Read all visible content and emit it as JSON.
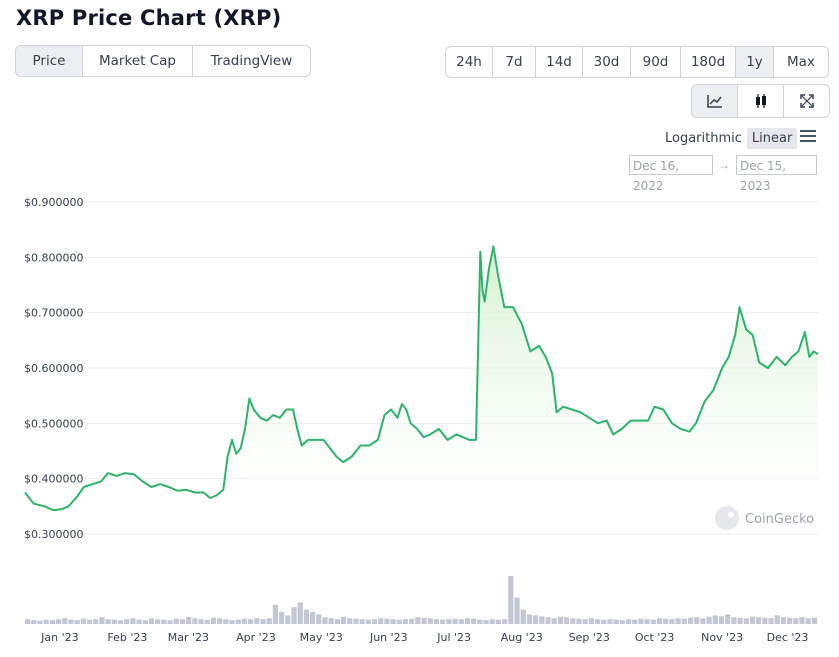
{
  "page_title": "XRP Price Chart (XRP)",
  "metric_tabs": [
    {
      "label": "Price",
      "active": true
    },
    {
      "label": "Market Cap",
      "active": false
    },
    {
      "label": "TradingView",
      "active": false
    }
  ],
  "range_tabs": [
    {
      "label": "24h",
      "active": false
    },
    {
      "label": "7d",
      "active": false
    },
    {
      "label": "14d",
      "active": false
    },
    {
      "label": "30d",
      "active": false
    },
    {
      "label": "90d",
      "active": false
    },
    {
      "label": "180d",
      "active": false
    },
    {
      "label": "1y",
      "active": true
    },
    {
      "label": "Max",
      "active": false
    }
  ],
  "view_buttons": [
    {
      "icon": "line-chart-icon",
      "active": true
    },
    {
      "icon": "candlestick-icon",
      "active": false
    },
    {
      "icon": "expand-icon",
      "active": false
    }
  ],
  "scale_options": {
    "logarithmic": "Logarithmic",
    "linear": "Linear",
    "active": "linear"
  },
  "date_range": {
    "from": "Dec 16, 2022",
    "arrow": "→",
    "to": "Dec 15, 2023"
  },
  "watermark": "CoinGecko",
  "colors": {
    "line": "#2fb36b",
    "fill_top": "#c9eec4",
    "volume": "#c3c7d4",
    "grid": "#eeeeee"
  },
  "chart_data": {
    "type": "area",
    "title": "XRP Price Chart (XRP)",
    "y_tick_labels": [
      "$0.900000",
      "$0.800000",
      "$0.700000",
      "$0.600000",
      "$0.500000",
      "$0.400000",
      "$0.300000"
    ],
    "y_ticks": [
      0.9,
      0.8,
      0.7,
      0.6,
      0.5,
      0.4,
      0.3
    ],
    "ylim": [
      0.3,
      0.9
    ],
    "x_tick_labels": [
      "Jan '23",
      "Feb '23",
      "Mar '23",
      "Apr '23",
      "May '23",
      "Jun '23",
      "Jul '23",
      "Aug '23",
      "Sep '23",
      "Oct '23",
      "Nov '23",
      "Dec '23"
    ],
    "x_ticks": [
      "2023-01-01",
      "2023-02-01",
      "2023-03-01",
      "2023-04-01",
      "2023-05-01",
      "2023-06-01",
      "2023-07-01",
      "2023-08-01",
      "2023-09-01",
      "2023-10-01",
      "2023-11-01",
      "2023-12-01"
    ],
    "xlim": [
      "2022-12-16",
      "2023-12-15"
    ],
    "grid": true,
    "legend": "none",
    "series": [
      {
        "values": [
          [
            "2022-12-16",
            0.375
          ],
          [
            "2022-12-20",
            0.355
          ],
          [
            "2022-12-25",
            0.35
          ],
          [
            "2022-12-29",
            0.343
          ],
          [
            "2023-01-02",
            0.345
          ],
          [
            "2023-01-05",
            0.35
          ],
          [
            "2023-01-09",
            0.368
          ],
          [
            "2023-01-12",
            0.385
          ],
          [
            "2023-01-16",
            0.39
          ],
          [
            "2023-01-20",
            0.395
          ],
          [
            "2023-01-23",
            0.41
          ],
          [
            "2023-01-27",
            0.405
          ],
          [
            "2023-01-31",
            0.41
          ],
          [
            "2023-02-04",
            0.408
          ],
          [
            "2023-02-08",
            0.395
          ],
          [
            "2023-02-12",
            0.385
          ],
          [
            "2023-02-16",
            0.39
          ],
          [
            "2023-02-20",
            0.385
          ],
          [
            "2023-02-24",
            0.378
          ],
          [
            "2023-02-28",
            0.38
          ],
          [
            "2023-03-04",
            0.375
          ],
          [
            "2023-03-08",
            0.375
          ],
          [
            "2023-03-11",
            0.365
          ],
          [
            "2023-03-14",
            0.37
          ],
          [
            "2023-03-17",
            0.38
          ],
          [
            "2023-03-19",
            0.44
          ],
          [
            "2023-03-21",
            0.47
          ],
          [
            "2023-03-23",
            0.445
          ],
          [
            "2023-03-25",
            0.455
          ],
          [
            "2023-03-27",
            0.49
          ],
          [
            "2023-03-29",
            0.545
          ],
          [
            "2023-03-31",
            0.525
          ],
          [
            "2023-04-03",
            0.51
          ],
          [
            "2023-04-06",
            0.505
          ],
          [
            "2023-04-09",
            0.515
          ],
          [
            "2023-04-12",
            0.51
          ],
          [
            "2023-04-15",
            0.525
          ],
          [
            "2023-04-18",
            0.525
          ],
          [
            "2023-04-20",
            0.49
          ],
          [
            "2023-04-22",
            0.46
          ],
          [
            "2023-04-25",
            0.47
          ],
          [
            "2023-04-28",
            0.47
          ],
          [
            "2023-05-02",
            0.47
          ],
          [
            "2023-05-05",
            0.455
          ],
          [
            "2023-05-08",
            0.44
          ],
          [
            "2023-05-11",
            0.43
          ],
          [
            "2023-05-15",
            0.44
          ],
          [
            "2023-05-19",
            0.46
          ],
          [
            "2023-05-23",
            0.46
          ],
          [
            "2023-05-27",
            0.47
          ],
          [
            "2023-05-30",
            0.515
          ],
          [
            "2023-06-02",
            0.525
          ],
          [
            "2023-06-05",
            0.51
          ],
          [
            "2023-06-07",
            0.535
          ],
          [
            "2023-06-09",
            0.525
          ],
          [
            "2023-06-11",
            0.5
          ],
          [
            "2023-06-14",
            0.49
          ],
          [
            "2023-06-17",
            0.475
          ],
          [
            "2023-06-20",
            0.48
          ],
          [
            "2023-06-24",
            0.49
          ],
          [
            "2023-06-28",
            0.47
          ],
          [
            "2023-07-02",
            0.48
          ],
          [
            "2023-07-05",
            0.475
          ],
          [
            "2023-07-08",
            0.47
          ],
          [
            "2023-07-11",
            0.47
          ],
          [
            "2023-07-13",
            0.81
          ],
          [
            "2023-07-14",
            0.74
          ],
          [
            "2023-07-15",
            0.72
          ],
          [
            "2023-07-17",
            0.78
          ],
          [
            "2023-07-19",
            0.82
          ],
          [
            "2023-07-21",
            0.77
          ],
          [
            "2023-07-24",
            0.71
          ],
          [
            "2023-07-28",
            0.71
          ],
          [
            "2023-08-01",
            0.68
          ],
          [
            "2023-08-05",
            0.63
          ],
          [
            "2023-08-09",
            0.64
          ],
          [
            "2023-08-12",
            0.62
          ],
          [
            "2023-08-15",
            0.59
          ],
          [
            "2023-08-17",
            0.52
          ],
          [
            "2023-08-20",
            0.53
          ],
          [
            "2023-08-24",
            0.525
          ],
          [
            "2023-08-28",
            0.52
          ],
          [
            "2023-09-01",
            0.51
          ],
          [
            "2023-09-05",
            0.5
          ],
          [
            "2023-09-09",
            0.505
          ],
          [
            "2023-09-12",
            0.48
          ],
          [
            "2023-09-16",
            0.49
          ],
          [
            "2023-09-20",
            0.505
          ],
          [
            "2023-09-24",
            0.505
          ],
          [
            "2023-09-28",
            0.505
          ],
          [
            "2023-10-01",
            0.53
          ],
          [
            "2023-10-05",
            0.525
          ],
          [
            "2023-10-09",
            0.5
          ],
          [
            "2023-10-13",
            0.49
          ],
          [
            "2023-10-17",
            0.485
          ],
          [
            "2023-10-20",
            0.5
          ],
          [
            "2023-10-24",
            0.54
          ],
          [
            "2023-10-28",
            0.56
          ],
          [
            "2023-11-01",
            0.6
          ],
          [
            "2023-11-04",
            0.62
          ],
          [
            "2023-11-07",
            0.66
          ],
          [
            "2023-11-09",
            0.71
          ],
          [
            "2023-11-12",
            0.67
          ],
          [
            "2023-11-15",
            0.66
          ],
          [
            "2023-11-18",
            0.61
          ],
          [
            "2023-11-22",
            0.6
          ],
          [
            "2023-11-26",
            0.62
          ],
          [
            "2023-11-30",
            0.605
          ],
          [
            "2023-12-03",
            0.62
          ],
          [
            "2023-12-06",
            0.63
          ],
          [
            "2023-12-09",
            0.665
          ],
          [
            "2023-12-11",
            0.62
          ],
          [
            "2023-12-13",
            0.63
          ],
          [
            "2023-12-15",
            0.625
          ]
        ]
      }
    ],
    "volume_bars_relative": [
      0.1,
      0.08,
      0.07,
      0.09,
      0.08,
      0.1,
      0.12,
      0.09,
      0.08,
      0.11,
      0.09,
      0.1,
      0.14,
      0.1,
      0.09,
      0.08,
      0.1,
      0.12,
      0.09,
      0.08,
      0.12,
      0.1,
      0.09,
      0.08,
      0.11,
      0.1,
      0.15,
      0.12,
      0.1,
      0.09,
      0.13,
      0.12,
      0.1,
      0.08,
      0.09,
      0.11,
      0.1,
      0.12,
      0.1,
      0.12,
      0.4,
      0.25,
      0.18,
      0.35,
      0.45,
      0.3,
      0.25,
      0.2,
      0.14,
      0.12,
      0.1,
      0.15,
      0.12,
      0.11,
      0.1,
      0.09,
      0.1,
      0.12,
      0.11,
      0.1,
      0.09,
      0.1,
      0.11,
      0.14,
      0.13,
      0.12,
      0.1,
      0.09,
      0.1,
      0.11,
      0.1,
      0.12,
      0.11,
      0.09,
      0.08,
      0.1,
      0.09,
      0.1,
      1.0,
      0.55,
      0.3,
      0.2,
      0.18,
      0.16,
      0.14,
      0.12,
      0.15,
      0.14,
      0.12,
      0.11,
      0.1,
      0.12,
      0.1,
      0.09,
      0.1,
      0.09,
      0.08,
      0.1,
      0.09,
      0.11,
      0.1,
      0.09,
      0.12,
      0.11,
      0.1,
      0.12,
      0.11,
      0.13,
      0.14,
      0.12,
      0.15,
      0.18,
      0.16,
      0.2,
      0.14,
      0.13,
      0.12,
      0.15,
      0.14,
      0.13,
      0.12,
      0.18,
      0.14,
      0.13,
      0.12,
      0.14,
      0.12,
      0.13
    ]
  }
}
